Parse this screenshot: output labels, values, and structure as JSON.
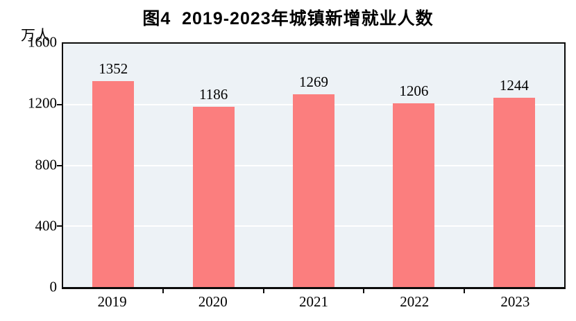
{
  "chart_data": {
    "type": "bar",
    "title": "图4  2019-2023年城镇新增就业人数",
    "unit": "万人",
    "categories": [
      "2019",
      "2020",
      "2021",
      "2022",
      "2023"
    ],
    "values": [
      1352,
      1186,
      1269,
      1206,
      1244
    ],
    "ylim": [
      0,
      1600
    ],
    "ytick_labels": [
      0,
      400,
      800,
      1200,
      1600
    ],
    "grid_values": [
      400,
      800,
      1200
    ],
    "axis_tick_values": [
      400,
      800,
      1200
    ],
    "legend": "none",
    "colors": {
      "bar": "#FB7E7E",
      "plot_bg": "#EDF2F6",
      "grid": "#FFFFFF",
      "axis": "#0B0B0B",
      "text": "#000000"
    }
  }
}
